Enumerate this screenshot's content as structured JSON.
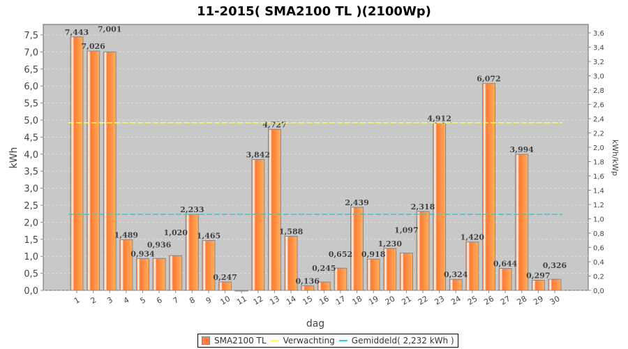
{
  "chart_data": {
    "type": "bar",
    "title": "11-2015( SMA2100 TL )(2100Wp)",
    "xlabel": "dag",
    "ylabel": "kWh",
    "y2label": "kWh/kWp",
    "ylim": [
      0,
      7.8
    ],
    "y2lim": [
      0,
      3.714
    ],
    "yticks": [
      "0,0",
      "0,5",
      "1,0",
      "1,5",
      "2,0",
      "2,5",
      "3,0",
      "3,5",
      "4,0",
      "4,5",
      "5,0",
      "5,5",
      "6,0",
      "6,5",
      "7,0",
      "7,5"
    ],
    "y2ticks": [
      "0,0",
      "0,2",
      "0,4",
      "0,6",
      "0,8",
      "1,0",
      "1,2",
      "1,4",
      "1,6",
      "1,8",
      "2,0",
      "2,2",
      "2,4",
      "2,6",
      "2,8",
      "3,0",
      "3,2",
      "3,4",
      "3,6"
    ],
    "categories": [
      "1",
      "2",
      "3",
      "4",
      "5",
      "6",
      "7",
      "8",
      "9",
      "10",
      "11",
      "12",
      "13",
      "14",
      "15",
      "16",
      "17",
      "18",
      "19",
      "20",
      "21",
      "22",
      "23",
      "24",
      "25",
      "26",
      "27",
      "28",
      "29",
      "30"
    ],
    "values": [
      7.443,
      7.026,
      7.001,
      1.489,
      0.934,
      0.936,
      1.02,
      2.233,
      1.465,
      0.247,
      0,
      3.842,
      4.727,
      1.588,
      0.136,
      0.245,
      0.652,
      2.439,
      0.918,
      1.23,
      1.097,
      2.318,
      4.912,
      0.324,
      1.42,
      6.072,
      0.644,
      3.994,
      0.297,
      0.326
    ],
    "labels": [
      "7,443",
      "7,026",
      "7,001",
      "1,489",
      "0,934",
      "0,936",
      "1,020",
      "2,233",
      "1,465",
      "0,247",
      "",
      "3,842",
      "4,727",
      "1,588",
      "0,136",
      "0,245",
      "0,652",
      "2,439",
      "0,918",
      "1,230",
      "1,097",
      "2,318",
      "4,912",
      "0,324",
      "1,420",
      "6,072",
      "0,644",
      "3,994",
      "0,297",
      "0,326"
    ],
    "expected": 4.92,
    "average": 2.232,
    "colors": {
      "bar": "#ff8c40",
      "expected": "#ffff44",
      "average": "#33cccc",
      "plot_bg": "#c8c8c8"
    }
  },
  "legend": {
    "series": "SMA2100 TL",
    "expected": "Verwachting",
    "average": "Gemiddeld( 2,232 kWh )"
  }
}
